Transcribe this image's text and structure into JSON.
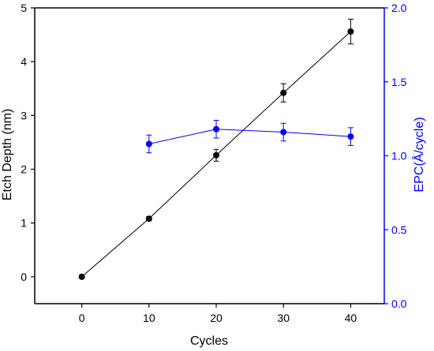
{
  "chart_data": {
    "type": "line",
    "xlabel": "Cycles",
    "x_ticks": [
      0,
      10,
      20,
      30,
      40
    ],
    "xlim": [
      -7,
      45
    ],
    "y_axes": [
      {
        "id": "left",
        "label": "Etch Depth (nm)",
        "ylim": [
          -0.5,
          5
        ],
        "ticks": [
          0,
          1,
          2,
          3,
          4,
          5
        ],
        "tick_labels": [
          "0",
          "1",
          "2",
          "3",
          "4",
          "5"
        ],
        "color": "#000000"
      },
      {
        "id": "right",
        "label": "EPC(Å/cycle)",
        "ylim": [
          0,
          2
        ],
        "ticks": [
          0,
          0.5,
          1,
          1.5,
          2
        ],
        "tick_labels": [
          "0.0",
          "0.5",
          "1.0",
          "1.5",
          "2.0"
        ],
        "color": "#0000ff"
      }
    ],
    "series": [
      {
        "axis": "left",
        "color": "#000000",
        "x": [
          0,
          10,
          20,
          30,
          40
        ],
        "y": [
          0.0,
          1.08,
          2.26,
          3.42,
          4.56
        ],
        "err": [
          0.0,
          0.04,
          0.11,
          0.17,
          0.23
        ]
      },
      {
        "axis": "right",
        "color": "#0000ff",
        "x": [
          10,
          20,
          30,
          40
        ],
        "y": [
          1.08,
          1.18,
          1.16,
          1.13
        ],
        "err": [
          0.06,
          0.06,
          0.06,
          0.06
        ]
      }
    ]
  }
}
